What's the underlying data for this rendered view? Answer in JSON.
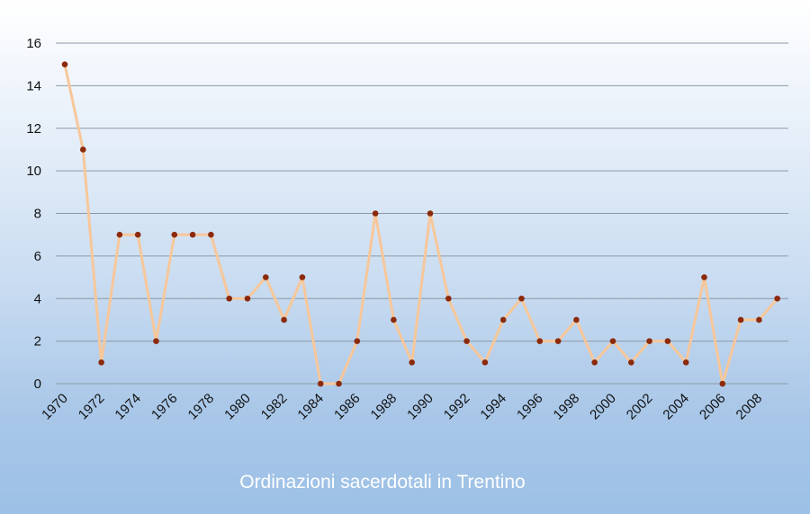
{
  "chart_data": {
    "type": "line",
    "title": "Ordinazioni sacerdotali in Trentino",
    "x": [
      1970,
      1971,
      1972,
      1973,
      1974,
      1975,
      1976,
      1977,
      1978,
      1979,
      1980,
      1981,
      1982,
      1983,
      1984,
      1985,
      1986,
      1987,
      1988,
      1989,
      1990,
      1991,
      1992,
      1993,
      1994,
      1995,
      1996,
      1997,
      1998,
      1999,
      2000,
      2001,
      2002,
      2003,
      2004,
      2005,
      2006,
      2007,
      2008,
      2009
    ],
    "values": [
      15,
      11,
      1,
      7,
      7,
      2,
      7,
      7,
      7,
      4,
      4,
      5,
      3,
      5,
      0,
      0,
      2,
      8,
      3,
      1,
      8,
      4,
      2,
      1,
      3,
      4,
      2,
      2,
      3,
      1,
      2,
      1,
      2,
      2,
      1,
      5,
      0,
      3,
      3,
      4
    ],
    "x_tick_labels": [
      "1970",
      "1972",
      "1974",
      "1976",
      "1978",
      "1980",
      "1982",
      "1984",
      "1986",
      "1988",
      "1990",
      "1992",
      "1994",
      "1996",
      "1998",
      "2000",
      "2002",
      "2004",
      "2006",
      "2008"
    ],
    "y_ticks": [
      0,
      2,
      4,
      6,
      8,
      10,
      12,
      14,
      16
    ],
    "ylim": [
      0,
      16
    ],
    "xlabel": "",
    "ylabel": "",
    "grid": true,
    "colors": {
      "line": "#f7c79a",
      "marker": "#8b2a0c",
      "grid": "#8a9aa8"
    }
  }
}
